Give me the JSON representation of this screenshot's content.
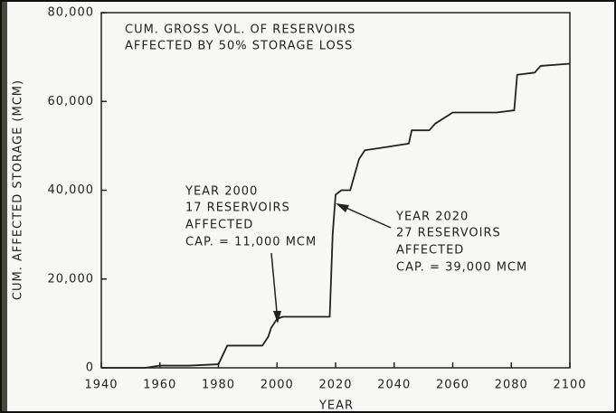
{
  "chart_data": {
    "type": "line",
    "title_lines": [
      "CUM. GROSS VOL. OF RESERVOIRS",
      "AFFECTED BY 50% STORAGE LOSS"
    ],
    "ylabel": "CUM. AFFECTED STORAGE (MCM)",
    "xlabel": "YEAR",
    "x": [
      1940,
      1955,
      1960,
      1970,
      1980,
      1983,
      1985,
      1995,
      1997,
      1998,
      2000,
      2002,
      2018,
      2019,
      2020,
      2022,
      2025,
      2028,
      2030,
      2035,
      2040,
      2045,
      2046,
      2052,
      2054,
      2060,
      2075,
      2081,
      2082,
      2088,
      2090,
      2100
    ],
    "series": [
      {
        "color": "#222222",
        "values": [
          0,
          0,
          500,
          500,
          800,
          5000,
          5000,
          5000,
          7000,
          9000,
          11000,
          11500,
          11500,
          30000,
          39000,
          40000,
          40000,
          47000,
          49000,
          49500,
          50000,
          50500,
          53500,
          53500,
          55000,
          57500,
          57500,
          58000,
          66000,
          66500,
          68000,
          68500
        ]
      }
    ],
    "xlim": [
      1940,
      2100
    ],
    "xticks": [
      1940,
      1960,
      1980,
      2000,
      2020,
      2040,
      2060,
      2080,
      2100
    ],
    "ylim": [
      0,
      80000
    ],
    "yticks": [
      0,
      {
        "value": 20000,
        "label": "20,000"
      },
      {
        "value": 40000,
        "label": "40,000"
      },
      {
        "value": 60000,
        "label": "60,000"
      },
      {
        "value": 80000,
        "label": "80,000"
      }
    ],
    "annotations": [
      {
        "lines": [
          "YEAR 2000",
          "17 RESERVOIRS",
          "AFFECTED",
          "CAP. = 11,000 MCM"
        ]
      },
      {
        "lines": [
          "YEAR 2020",
          "27 RESERVOIRS",
          "AFFECTED",
          "CAP. = 39,000 MCM"
        ]
      }
    ]
  }
}
